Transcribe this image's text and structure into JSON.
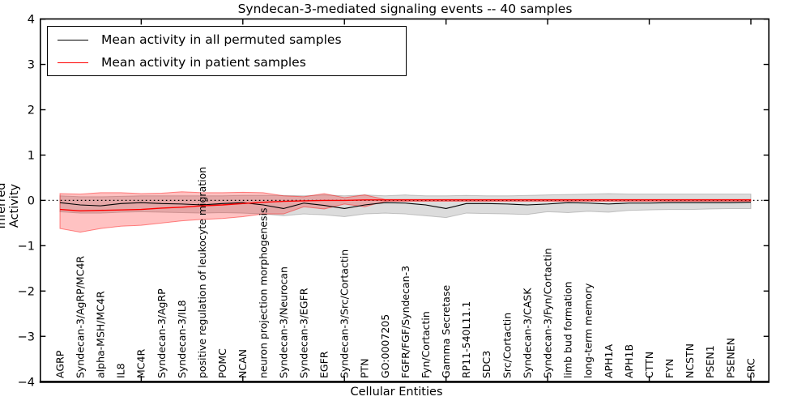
{
  "title": "Syndecan-3-mediated signaling events -- 40 samples",
  "legend": {
    "entries": [
      {
        "label": "Mean activity in all permuted samples",
        "color": "#000000"
      },
      {
        "label": "Mean activity in patient samples",
        "color": "#ff0000"
      }
    ]
  },
  "axes": {
    "x": {
      "label": "Cellular Entities"
    },
    "y": {
      "label": "Inferred Activity",
      "tick_labels": [
        "4",
        "3",
        "2",
        "1",
        "0",
        "−1",
        "−2",
        "−3",
        "−4"
      ],
      "tick_values": [
        4,
        3,
        2,
        1,
        0,
        -1,
        -2,
        -3,
        -4
      ]
    }
  },
  "colors": {
    "permuted_line": "#000000",
    "patient_line": "#ff0000",
    "permuted_band_fill": "rgba(128,128,128,0.28)",
    "permuted_band_edge": "rgba(105,105,105,0.35)",
    "patient_band_fill": "rgba(255,0,0,0.24)",
    "patient_band_edge": "rgba(255,0,0,0.45)",
    "zero_line": "#000000",
    "frame": "#000000"
  },
  "chart_data": {
    "type": "line",
    "title": "Syndecan-3-mediated signaling events -- 40 samples",
    "xlabel": "Cellular Entities",
    "ylabel": "Inferred Activity",
    "ylim": [
      -4,
      4
    ],
    "grid": false,
    "legend_position": "upper left",
    "zero_line": {
      "value": 0,
      "style": "dotted",
      "color": "#000000"
    },
    "x_tick_interval": 5,
    "categories": [
      "AGRP",
      "Syndecan-3/AgRP/MC4R",
      "alpha-MSH/MC4R",
      "IL8",
      "MC4R",
      "Syndecan-3/AgRP",
      "Syndecan-3/IL8",
      "positive regulation of leukocyte migration",
      "POMC",
      "NCAN",
      "neuron projection morphogenesis",
      "Syndecan-3/Neurocan",
      "Syndecan-3/EGFR",
      "EGFR",
      "Syndecan-3/Src/Cortactin",
      "PTN",
      "GO:0007205",
      "FGFR/FGF/Syndecan-3",
      "Fyn/Cortactin",
      "Gamma Secretase",
      "RP11-540L11.1",
      "SDC3",
      "Src/Cortactin",
      "Syndecan-3/CASK",
      "Syndecan-3/Fyn/Cortactin",
      "limb bud formation",
      "long-term memory",
      "APH1A",
      "APH1B",
      "CTTN",
      "FYN",
      "NCSTN",
      "PSEN1",
      "PSENEN",
      "SRC"
    ],
    "series": [
      {
        "name": "Mean activity in all permuted samples",
        "color": "#000000",
        "values": [
          -0.05,
          -0.1,
          -0.12,
          -0.07,
          -0.05,
          -0.07,
          -0.08,
          -0.1,
          -0.07,
          -0.05,
          -0.1,
          -0.18,
          -0.06,
          -0.11,
          -0.18,
          -0.1,
          -0.05,
          -0.06,
          -0.1,
          -0.18,
          -0.07,
          -0.07,
          -0.08,
          -0.1,
          -0.08,
          -0.05,
          -0.06,
          -0.08,
          -0.06,
          -0.06,
          -0.05,
          -0.05,
          -0.05,
          -0.05,
          -0.04
        ],
        "band_upper": [
          0.1,
          0.08,
          0.08,
          0.09,
          0.1,
          0.1,
          0.1,
          0.1,
          0.1,
          0.11,
          0.11,
          0.11,
          0.1,
          0.12,
          0.1,
          0.12,
          0.1,
          0.12,
          0.1,
          0.1,
          0.11,
          0.1,
          0.1,
          0.11,
          0.12,
          0.13,
          0.14,
          0.15,
          0.14,
          0.14,
          0.14,
          0.14,
          0.14,
          0.14,
          0.14
        ],
        "band_lower": [
          -0.25,
          -0.28,
          -0.28,
          -0.26,
          -0.25,
          -0.26,
          -0.27,
          -0.28,
          -0.27,
          -0.28,
          -0.3,
          -0.34,
          -0.3,
          -0.32,
          -0.36,
          -0.3,
          -0.28,
          -0.3,
          -0.34,
          -0.38,
          -0.28,
          -0.29,
          -0.3,
          -0.31,
          -0.25,
          -0.27,
          -0.24,
          -0.26,
          -0.22,
          -0.21,
          -0.2,
          -0.2,
          -0.19,
          -0.18,
          -0.18
        ]
      },
      {
        "name": "Mean activity in patient samples",
        "color": "#ff0000",
        "values": [
          -0.2,
          -0.23,
          -0.22,
          -0.21,
          -0.2,
          -0.17,
          -0.15,
          -0.12,
          -0.1,
          -0.07,
          -0.04,
          -0.02,
          -0.01,
          0.0,
          0.0,
          0.01,
          0.01,
          0.01,
          0.01,
          0.01,
          0.01,
          0.01,
          0.01,
          0.01,
          0.01,
          0.01,
          0.01,
          0.01,
          0.01,
          0.01,
          0.01,
          0.01,
          0.01,
          0.01,
          0.01
        ],
        "band_upper": [
          0.15,
          0.14,
          0.17,
          0.17,
          0.15,
          0.16,
          0.19,
          0.17,
          0.17,
          0.18,
          0.17,
          0.1,
          0.08,
          0.15,
          0.06,
          0.12,
          0.02,
          0.02,
          0.02,
          0.02,
          0.02,
          0.02,
          0.02,
          0.02,
          0.02,
          0.02,
          0.02,
          0.02,
          0.02,
          0.02,
          0.02,
          0.02,
          0.02,
          0.02,
          0.02
        ],
        "band_lower": [
          -0.62,
          -0.7,
          -0.62,
          -0.57,
          -0.55,
          -0.5,
          -0.45,
          -0.42,
          -0.4,
          -0.36,
          -0.3,
          -0.3,
          -0.14,
          -0.19,
          -0.08,
          -0.14,
          -0.02,
          -0.02,
          -0.02,
          -0.02,
          -0.02,
          -0.02,
          -0.02,
          -0.02,
          -0.02,
          -0.02,
          -0.02,
          -0.02,
          -0.02,
          -0.02,
          -0.02,
          -0.02,
          -0.02,
          -0.02,
          -0.02
        ]
      }
    ]
  }
}
